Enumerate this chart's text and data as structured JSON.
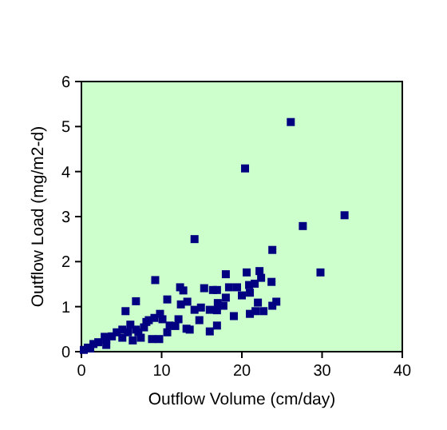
{
  "chart_data": {
    "type": "scatter",
    "xlabel": "Outflow Volume (cm/day)",
    "ylabel": "Outflow Load (mg/m2-d)",
    "xlim": [
      0,
      40
    ],
    "ylim": [
      0,
      6
    ],
    "xticks": [
      0,
      10,
      20,
      30,
      40
    ],
    "yticks": [
      0,
      1,
      2,
      3,
      4,
      5,
      6
    ],
    "grid": false,
    "marker": "square",
    "series": [
      {
        "color": "#000080",
        "x": [
          26.1,
          20.4,
          32.8,
          27.6,
          14.1,
          23.8,
          29.8,
          18.0,
          20.6,
          22.2,
          22.4,
          9.2,
          12.3,
          15.3,
          16.4,
          16.9,
          18.4,
          19.4,
          20.9,
          21.6,
          23.7,
          12.7,
          6.8,
          10.7,
          13.2,
          12.4,
          17.0,
          18.0,
          20.0,
          21.0,
          22.0,
          24.3,
          23.8,
          5.5,
          14.1,
          14.9,
          16.0,
          16.9,
          17.7,
          19.0,
          21.0,
          21.7,
          22.7,
          12.1,
          14.7,
          16.9,
          13.1,
          13.5,
          16.0,
          11.0,
          10.1,
          9.1,
          9.8,
          8.4,
          7.8,
          7.4,
          8.8,
          9.7,
          6.4,
          5.8,
          5.1,
          4.4,
          3.8,
          3.1,
          2.9,
          2.1,
          1.5,
          0.8,
          0.3,
          5.1,
          7.1,
          10.7,
          11.7,
          3.1,
          1.1,
          6.1,
          8.1,
          6.8
        ],
        "values": [
          5.1,
          4.07,
          3.03,
          2.79,
          2.5,
          2.26,
          1.76,
          1.72,
          1.76,
          1.79,
          1.64,
          1.59,
          1.43,
          1.41,
          1.37,
          1.37,
          1.43,
          1.43,
          1.48,
          1.51,
          1.55,
          1.36,
          1.12,
          1.16,
          1.11,
          1.05,
          1.08,
          1.2,
          1.25,
          1.31,
          1.09,
          1.11,
          1.02,
          0.9,
          0.93,
          0.98,
          0.93,
          0.92,
          1.02,
          0.79,
          0.84,
          0.9,
          0.9,
          0.72,
          0.7,
          0.58,
          0.51,
          0.49,
          0.45,
          0.58,
          0.72,
          0.75,
          0.84,
          0.7,
          0.54,
          0.31,
          0.28,
          0.28,
          0.25,
          0.43,
          0.49,
          0.43,
          0.34,
          0.27,
          0.33,
          0.21,
          0.17,
          0.09,
          0.04,
          0.31,
          0.43,
          0.43,
          0.57,
          0.15,
          0.07,
          0.6,
          0.66,
          0.49
        ]
      }
    ]
  }
}
